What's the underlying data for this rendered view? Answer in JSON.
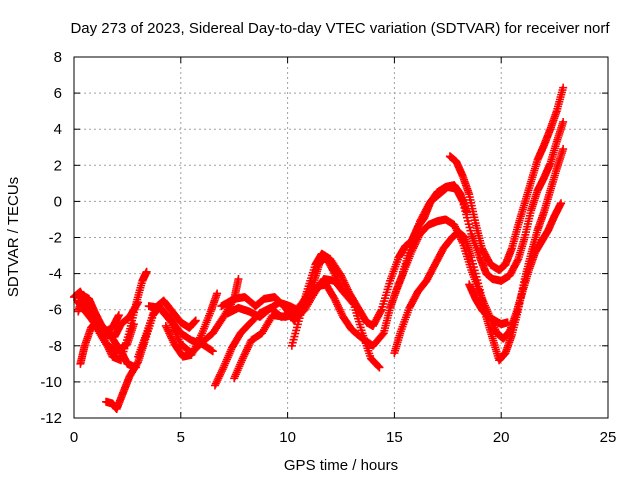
{
  "chart_data": {
    "type": "scatter",
    "title": "Day 273 of 2023, Sidereal Day-to-day VTEC variation (SDTVAR) for receiver norf",
    "xlabel": "GPS time / hours",
    "ylabel": "SDTVAR / TECUs",
    "xlim": [
      0,
      25
    ],
    "ylim": [
      -12,
      8
    ],
    "xticks": [
      0,
      5,
      10,
      15,
      20,
      25
    ],
    "yticks": [
      -12,
      -10,
      -8,
      -6,
      -4,
      -2,
      0,
      2,
      4,
      6,
      8
    ],
    "grid": true,
    "marker": "+",
    "color": "#ff0000",
    "series": [
      {
        "points": [
          [
            0.0,
            -5.3
          ],
          [
            0.3,
            -5.0
          ],
          [
            0.6,
            -5.8
          ],
          [
            1.0,
            -6.6
          ],
          [
            1.4,
            -7.0
          ],
          [
            1.8,
            -7.6
          ],
          [
            2.2,
            -8.3
          ],
          [
            2.5,
            -9.0
          ],
          [
            2.9,
            -9.2
          ]
        ]
      },
      {
        "points": [
          [
            0.2,
            -5.6
          ],
          [
            0.6,
            -6.2
          ],
          [
            1.0,
            -6.8
          ],
          [
            1.4,
            -7.6
          ],
          [
            1.8,
            -8.6
          ],
          [
            2.2,
            -8.8
          ],
          [
            2.6,
            -7.2
          ],
          [
            2.9,
            -5.7
          ],
          [
            3.2,
            -4.4
          ],
          [
            3.4,
            -3.9
          ]
        ]
      },
      {
        "points": [
          [
            0.3,
            -9.0
          ],
          [
            0.5,
            -8.0
          ],
          [
            0.8,
            -7.0
          ],
          [
            1.1,
            -6.6
          ],
          [
            1.5,
            -7.2
          ],
          [
            1.8,
            -7.0
          ],
          [
            2.1,
            -6.3
          ]
        ]
      },
      {
        "points": [
          [
            0.2,
            -6.1
          ],
          [
            0.4,
            -5.2
          ],
          [
            0.7,
            -5.4
          ],
          [
            1.0,
            -6.2
          ],
          [
            1.3,
            -6.9
          ],
          [
            1.6,
            -7.4
          ],
          [
            1.9,
            -7.5
          ],
          [
            2.2,
            -6.8
          ],
          [
            2.6,
            -6.4
          ],
          [
            3.0,
            -5.6
          ]
        ]
      },
      {
        "points": [
          [
            0.2,
            -5.5
          ],
          [
            0.6,
            -5.9
          ],
          [
            1.0,
            -6.9
          ],
          [
            1.5,
            -7.9
          ],
          [
            2.0,
            -8.3
          ],
          [
            2.5,
            -7.9
          ],
          [
            2.8,
            -6.8
          ]
        ]
      },
      {
        "points": [
          [
            1.5,
            -11.1
          ],
          [
            1.8,
            -11.2
          ],
          [
            2.0,
            -11.5
          ],
          [
            2.3,
            -10.6
          ],
          [
            2.6,
            -9.7
          ],
          [
            3.0,
            -8.9
          ],
          [
            3.3,
            -7.8
          ],
          [
            3.7,
            -6.3
          ],
          [
            4.0,
            -5.8
          ],
          [
            4.5,
            -6.5
          ],
          [
            5.0,
            -7.3
          ],
          [
            5.5,
            -7.7
          ],
          [
            6.0,
            -7.9
          ],
          [
            6.5,
            -8.3
          ]
        ]
      },
      {
        "points": [
          [
            3.0,
            -8.6
          ],
          [
            3.4,
            -7.3
          ],
          [
            3.8,
            -5.9
          ],
          [
            4.2,
            -5.5
          ],
          [
            4.6,
            -6.1
          ],
          [
            5.0,
            -6.7
          ],
          [
            5.4,
            -7.0
          ],
          [
            5.7,
            -6.6
          ]
        ]
      },
      {
        "points": [
          [
            3.5,
            -5.8
          ],
          [
            4.0,
            -5.9
          ],
          [
            4.5,
            -6.6
          ],
          [
            5.0,
            -7.9
          ],
          [
            5.5,
            -8.4
          ],
          [
            6.0,
            -7.8
          ],
          [
            6.5,
            -7.3
          ],
          [
            7.0,
            -6.4
          ],
          [
            7.5,
            -5.4
          ],
          [
            7.7,
            -4.3
          ]
        ]
      },
      {
        "points": [
          [
            4.3,
            -6.9
          ],
          [
            4.7,
            -7.9
          ],
          [
            5.1,
            -8.6
          ],
          [
            5.5,
            -8.5
          ],
          [
            6.0,
            -7.3
          ],
          [
            6.4,
            -6.1
          ],
          [
            6.7,
            -5.1
          ]
        ]
      },
      {
        "points": [
          [
            6.6,
            -10.2
          ],
          [
            7.0,
            -9.2
          ],
          [
            7.4,
            -8.1
          ],
          [
            7.8,
            -7.3
          ],
          [
            8.2,
            -6.8
          ],
          [
            8.7,
            -6.2
          ],
          [
            9.2,
            -5.9
          ],
          [
            9.7,
            -6.4
          ],
          [
            10.2,
            -6.3
          ],
          [
            10.7,
            -5.6
          ],
          [
            11.1,
            -4.9
          ]
        ]
      },
      {
        "points": [
          [
            7.5,
            -9.8
          ],
          [
            7.9,
            -8.7
          ],
          [
            8.3,
            -7.7
          ],
          [
            8.8,
            -7.3
          ],
          [
            9.3,
            -6.3
          ],
          [
            9.9,
            -6.4
          ],
          [
            10.4,
            -6.2
          ],
          [
            10.9,
            -5.3
          ],
          [
            11.2,
            -4.6
          ],
          [
            11.5,
            -3.4
          ],
          [
            11.8,
            -3.1
          ],
          [
            12.2,
            -4.0
          ],
          [
            12.6,
            -5.0
          ],
          [
            13.1,
            -5.7
          ],
          [
            13.5,
            -7.3
          ],
          [
            13.9,
            -8.7
          ],
          [
            14.3,
            -9.2
          ]
        ]
      },
      {
        "points": [
          [
            6.9,
            -5.8
          ],
          [
            7.5,
            -5.4
          ],
          [
            8.0,
            -5.3
          ],
          [
            8.5,
            -5.8
          ],
          [
            8.9,
            -5.4
          ],
          [
            9.4,
            -5.3
          ],
          [
            9.9,
            -5.9
          ],
          [
            10.3,
            -6.6
          ],
          [
            10.8,
            -6.0
          ],
          [
            11.3,
            -5.0
          ],
          [
            11.7,
            -4.3
          ],
          [
            12.2,
            -4.4
          ],
          [
            12.6,
            -5.0
          ]
        ]
      },
      {
        "points": [
          [
            7.2,
            -6.2
          ],
          [
            7.7,
            -5.9
          ],
          [
            8.2,
            -6.1
          ],
          [
            8.7,
            -6.4
          ],
          [
            9.1,
            -6.0
          ],
          [
            9.6,
            -5.6
          ],
          [
            10.1,
            -5.8
          ],
          [
            10.6,
            -6.1
          ],
          [
            11.0,
            -5.3
          ],
          [
            11.4,
            -4.7
          ],
          [
            11.8,
            -4.6
          ],
          [
            12.2,
            -5.4
          ],
          [
            12.6,
            -6.4
          ],
          [
            13.0,
            -7.1
          ],
          [
            13.5,
            -7.6
          ],
          [
            14.0,
            -8.0
          ],
          [
            14.5,
            -7.3
          ],
          [
            14.8,
            -5.9
          ],
          [
            15.1,
            -4.9
          ],
          [
            15.4,
            -4.0
          ],
          [
            15.8,
            -2.8
          ],
          [
            16.2,
            -1.8
          ],
          [
            16.6,
            -1.3
          ],
          [
            17.0,
            -1.1
          ],
          [
            17.4,
            -1.0
          ],
          [
            17.8,
            -1.3
          ],
          [
            18.2,
            -2.3
          ],
          [
            18.6,
            -3.8
          ],
          [
            19.0,
            -5.1
          ],
          [
            19.4,
            -6.2
          ],
          [
            19.8,
            -7.3
          ],
          [
            20.1,
            -7.6
          ],
          [
            20.4,
            -7.2
          ],
          [
            20.7,
            -6.2
          ],
          [
            21.0,
            -5.0
          ],
          [
            21.3,
            -3.8
          ],
          [
            21.6,
            -2.8
          ],
          [
            21.9,
            -2.2
          ],
          [
            22.2,
            -1.6
          ],
          [
            22.5,
            -0.8
          ],
          [
            22.8,
            -0.1
          ]
        ]
      },
      {
        "points": [
          [
            10.2,
            -8.0
          ],
          [
            10.6,
            -6.3
          ],
          [
            10.9,
            -5.0
          ],
          [
            11.3,
            -3.5
          ],
          [
            11.6,
            -2.9
          ],
          [
            12.0,
            -3.2
          ],
          [
            12.5,
            -4.1
          ],
          [
            12.9,
            -5.1
          ],
          [
            13.3,
            -5.9
          ],
          [
            13.7,
            -6.7
          ],
          [
            14.0,
            -6.9
          ],
          [
            14.4,
            -6.0
          ],
          [
            14.8,
            -4.4
          ],
          [
            15.2,
            -3.1
          ],
          [
            15.5,
            -2.5
          ],
          [
            15.8,
            -2.2
          ],
          [
            16.1,
            -1.4
          ],
          [
            16.4,
            -0.9
          ],
          [
            16.7,
            0.0
          ],
          [
            17.1,
            0.4
          ],
          [
            17.5,
            0.8
          ],
          [
            17.9,
            0.7
          ],
          [
            18.2,
            0.0
          ],
          [
            18.6,
            -1.8
          ],
          [
            19.0,
            -3.1
          ],
          [
            19.3,
            -4.0
          ],
          [
            19.6,
            -4.3
          ],
          [
            20.0,
            -4.4
          ],
          [
            20.4,
            -4.1
          ],
          [
            20.8,
            -3.2
          ],
          [
            21.1,
            -2.0
          ],
          [
            21.4,
            -0.5
          ],
          [
            21.7,
            0.6
          ],
          [
            22.0,
            1.3
          ],
          [
            22.3,
            2.1
          ],
          [
            22.6,
            3.3
          ],
          [
            22.9,
            4.4
          ]
        ]
      },
      {
        "points": [
          [
            15.0,
            -8.4
          ],
          [
            15.3,
            -7.2
          ],
          [
            15.7,
            -5.9
          ],
          [
            16.1,
            -5.0
          ],
          [
            16.5,
            -4.4
          ],
          [
            16.9,
            -3.5
          ],
          [
            17.3,
            -2.6
          ],
          [
            17.7,
            -2.0
          ],
          [
            18.0,
            -1.7
          ],
          [
            18.3,
            -2.0
          ],
          [
            18.6,
            -3.1
          ],
          [
            19.0,
            -4.9
          ],
          [
            19.3,
            -6.4
          ],
          [
            19.6,
            -7.6
          ],
          [
            19.9,
            -8.8
          ],
          [
            20.2,
            -8.4
          ],
          [
            20.5,
            -7.4
          ],
          [
            20.8,
            -6.0
          ],
          [
            21.1,
            -4.3
          ],
          [
            21.4,
            -2.9
          ],
          [
            21.7,
            -1.6
          ],
          [
            22.0,
            -0.6
          ],
          [
            22.3,
            0.6
          ],
          [
            22.6,
            1.8
          ],
          [
            22.9,
            2.9
          ]
        ]
      },
      {
        "points": [
          [
            15.4,
            -3.9
          ],
          [
            15.8,
            -2.4
          ],
          [
            16.2,
            -1.1
          ],
          [
            16.6,
            -0.2
          ],
          [
            17.0,
            0.5
          ],
          [
            17.4,
            0.8
          ],
          [
            17.8,
            0.9
          ],
          [
            18.1,
            0.4
          ],
          [
            18.4,
            -0.6
          ]
        ]
      },
      {
        "points": [
          [
            17.6,
            2.5
          ],
          [
            17.9,
            2.2
          ],
          [
            18.2,
            1.4
          ],
          [
            18.5,
            0.4
          ],
          [
            18.8,
            -1.2
          ],
          [
            19.1,
            -2.6
          ],
          [
            19.5,
            -3.5
          ],
          [
            19.9,
            -3.8
          ],
          [
            20.2,
            -3.5
          ],
          [
            20.5,
            -2.6
          ],
          [
            20.8,
            -1.3
          ],
          [
            21.1,
            -0.1
          ],
          [
            21.4,
            1.1
          ],
          [
            21.7,
            2.3
          ],
          [
            22.0,
            3.1
          ],
          [
            22.3,
            4.0
          ],
          [
            22.6,
            5.0
          ],
          [
            22.9,
            6.3
          ]
        ]
      },
      {
        "points": [
          [
            18.5,
            -4.6
          ],
          [
            18.8,
            -5.4
          ],
          [
            19.1,
            -6.0
          ],
          [
            19.4,
            -6.4
          ],
          [
            19.7,
            -6.6
          ],
          [
            20.0,
            -6.8
          ],
          [
            20.3,
            -6.7
          ]
        ]
      }
    ]
  }
}
